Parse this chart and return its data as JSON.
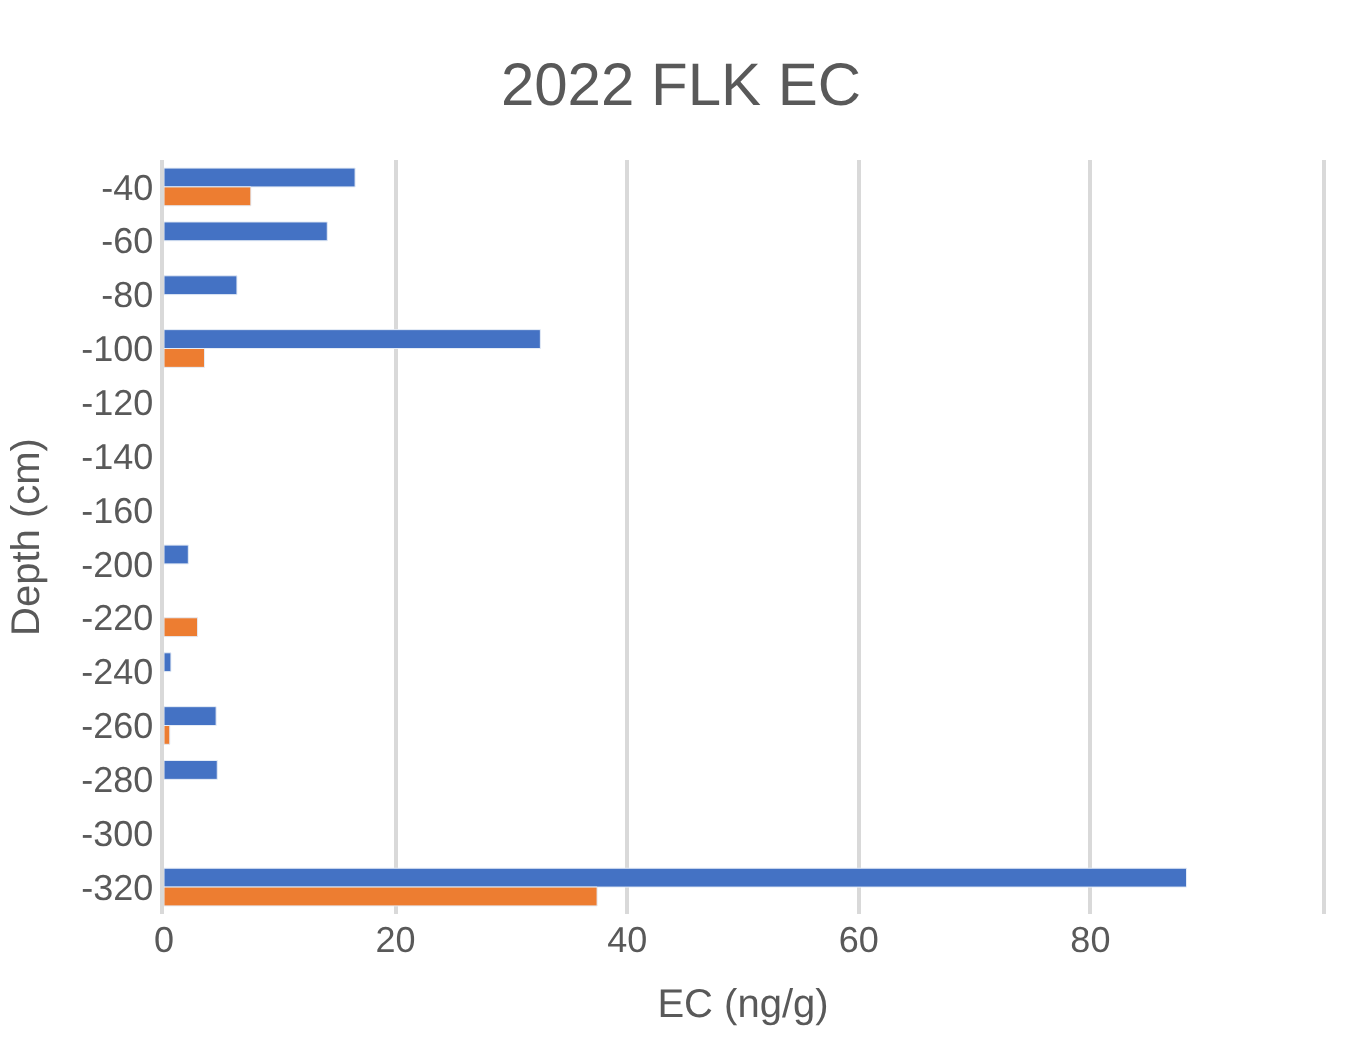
{
  "chart_data": {
    "type": "bar",
    "orientation": "horizontal",
    "title": "2022 FLK EC",
    "xlabel": "EC (ng/g)",
    "ylabel": "Depth (cm)",
    "categories": [
      "-40",
      "-60",
      "-80",
      "-100",
      "-120",
      "-140",
      "-160",
      "-200",
      "-220",
      "-240",
      "-260",
      "-280",
      "-300",
      "-320"
    ],
    "series": [
      {
        "color": "#4472c4",
        "values": [
          16.5,
          14.1,
          6.3,
          32.5,
          null,
          null,
          null,
          2.1,
          null,
          0.6,
          4.5,
          4.6,
          null,
          88.3
        ]
      },
      {
        "color": "#ed7d31",
        "values": [
          7.5,
          null,
          null,
          3.5,
          null,
          null,
          null,
          null,
          2.9,
          null,
          0.5,
          null,
          null,
          37.4
        ]
      }
    ],
    "xlim": [
      0,
      100
    ],
    "xticks": [
      0,
      20,
      40,
      60,
      80
    ],
    "grid": "x"
  }
}
